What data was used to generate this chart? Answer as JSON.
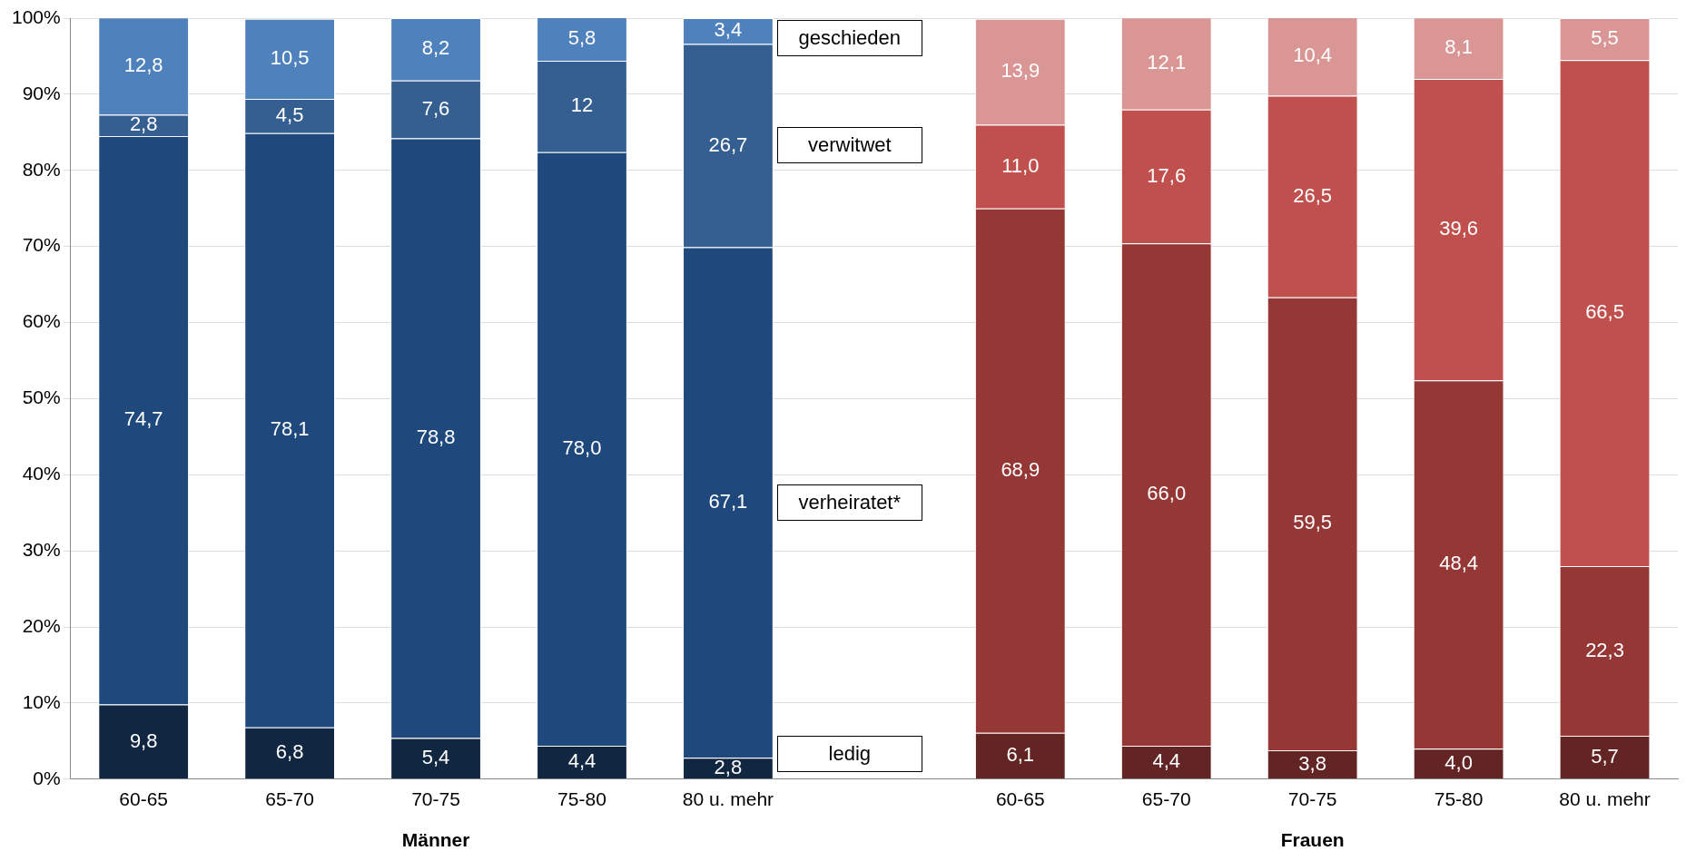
{
  "chart_data": {
    "type": "bar",
    "stacked": true,
    "categories": [
      "60-65",
      "65-70",
      "70-75",
      "75-80",
      "80 u. mehr",
      null,
      "60-65",
      "65-70",
      "70-75",
      "75-80",
      "80 u. mehr"
    ],
    "ylim": [
      0,
      100
    ],
    "yticks": [
      {
        "value": 0,
        "label": "0%"
      },
      {
        "value": 10,
        "label": "10%"
      },
      {
        "value": 20,
        "label": "20%"
      },
      {
        "value": 30,
        "label": "30%"
      },
      {
        "value": 40,
        "label": "40%"
      },
      {
        "value": 50,
        "label": "50%"
      },
      {
        "value": 60,
        "label": "60%"
      },
      {
        "value": 70,
        "label": "70%"
      },
      {
        "value": 80,
        "label": "80%"
      },
      {
        "value": 90,
        "label": "90%"
      },
      {
        "value": 100,
        "label": "100%"
      }
    ],
    "grid": "y",
    "legend": false,
    "annotations": [
      "Männer",
      "Frauen"
    ],
    "series": [
      {
        "name": "ledig",
        "colors": [
          "#112640",
          "#112640",
          "#112640",
          "#112640",
          "#112640",
          null,
          "#632523",
          "#632523",
          "#632523",
          "#632523",
          "#632523"
        ],
        "values": [
          9.8,
          6.8,
          5.4,
          4.4,
          2.8,
          null,
          6.1,
          4.4,
          3.8,
          4.0,
          5.7
        ],
        "value_labels": [
          "9,8",
          "6,8",
          "5,4",
          "4,4",
          "2,8",
          null,
          "6,1",
          "4,4",
          "3,8",
          "4,0",
          "5,7"
        ]
      },
      {
        "name": "verheiratet*",
        "colors": [
          "#1f497d",
          "#1f497d",
          "#1f497d",
          "#1f497d",
          "#1f497d",
          null,
          "#953735",
          "#953735",
          "#953735",
          "#953735",
          "#953735"
        ],
        "values": [
          74.7,
          78.1,
          78.8,
          78.0,
          67.1,
          null,
          68.9,
          66.0,
          59.5,
          48.4,
          22.3
        ],
        "value_labels": [
          "74,7",
          "78,1",
          "78,8",
          "78,0",
          "67,1",
          null,
          "68,9",
          "66,0",
          "59,5",
          "48,4",
          "22,3"
        ]
      },
      {
        "name": "verwitwet",
        "colors": [
          "#365f91",
          "#365f91",
          "#365f91",
          "#365f91",
          "#365f91",
          null,
          "#c0504d",
          "#c0504d",
          "#c0504d",
          "#c0504d",
          "#c0504d"
        ],
        "values": [
          2.8,
          4.5,
          7.6,
          12,
          26.7,
          null,
          11.0,
          17.6,
          26.5,
          39.6,
          66.5
        ],
        "value_labels": [
          "2,8",
          "4,5",
          "7,6",
          "12",
          "26,7",
          null,
          "11,0",
          "17,6",
          "26,5",
          "39,6",
          "66,5"
        ]
      },
      {
        "name": "geschieden",
        "colors": [
          "#4f81bd",
          "#4f81bd",
          "#4f81bd",
          "#4f81bd",
          "#4f81bd",
          null,
          "#d99694",
          "#d99694",
          "#d99694",
          "#d99694",
          "#d99694"
        ],
        "values": [
          12.8,
          10.5,
          8.2,
          5.8,
          3.4,
          null,
          13.9,
          12.1,
          10.4,
          8.1,
          5.5
        ],
        "value_labels": [
          "12,8",
          "10,5",
          "8,2",
          "5,8",
          "3,4",
          null,
          "13,9",
          "12,1",
          "10,4",
          "8,1",
          "5,5"
        ]
      }
    ]
  }
}
